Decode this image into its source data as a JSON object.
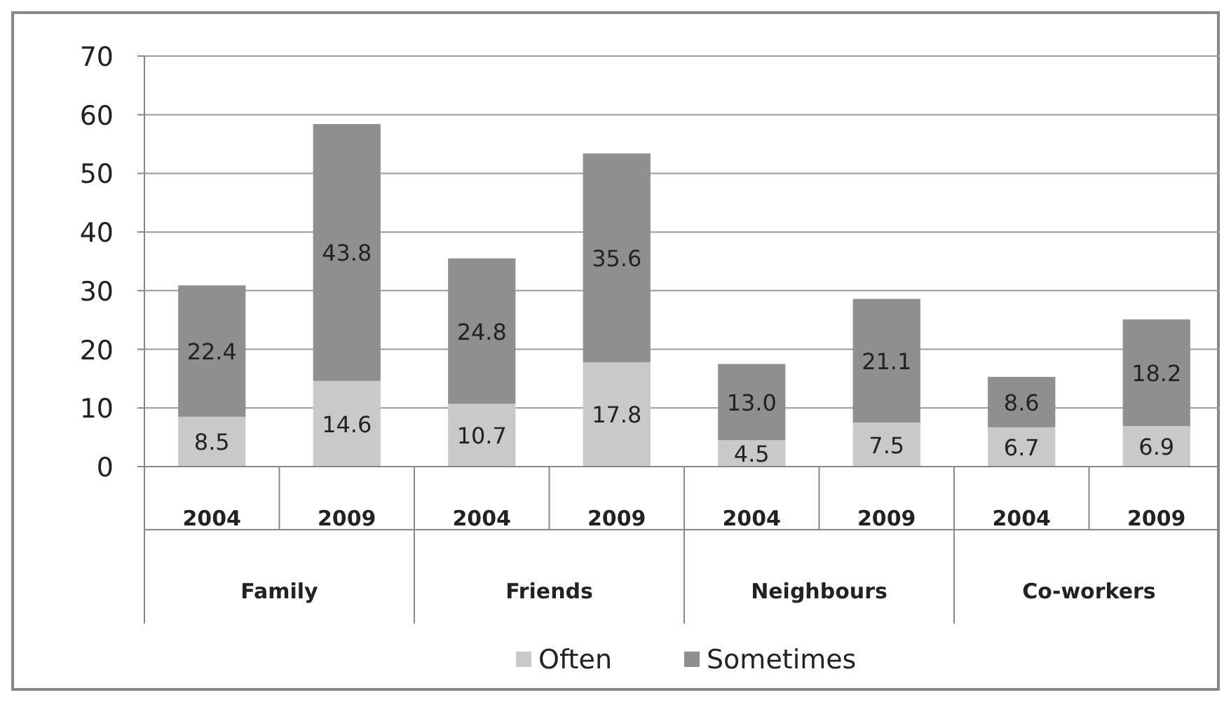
{
  "chart_data": {
    "type": "bar",
    "stacked": true,
    "categories": [
      "2004",
      "2009",
      "2004",
      "2009",
      "2004",
      "2009",
      "2004",
      "2009"
    ],
    "annotations": [
      "Family",
      "Friends",
      "Neighbours",
      "Co-workers"
    ],
    "series": [
      {
        "name": "Often",
        "color": "#c9c9c9",
        "values": [
          8.5,
          14.6,
          10.7,
          17.8,
          4.5,
          7.5,
          6.7,
          6.9
        ]
      },
      {
        "name": "Sometimes",
        "color": "#8f8f8f",
        "values": [
          22.4,
          43.8,
          24.8,
          35.6,
          13.0,
          21.1,
          8.6,
          18.2
        ]
      }
    ],
    "value_labels": [
      [
        "8.5",
        "14.6",
        "10.7",
        "17.8",
        "4.5",
        "7.5",
        "6.7",
        "6.9"
      ],
      [
        "22.4",
        "43.8",
        "24.8",
        "35.6",
        "13.0",
        "21.1",
        "8.6",
        "18.2"
      ]
    ],
    "ylim": [
      0,
      70
    ],
    "yticks": [
      0,
      10,
      20,
      30,
      40,
      50,
      60,
      70
    ],
    "grid": "y",
    "legend": "bottom"
  }
}
